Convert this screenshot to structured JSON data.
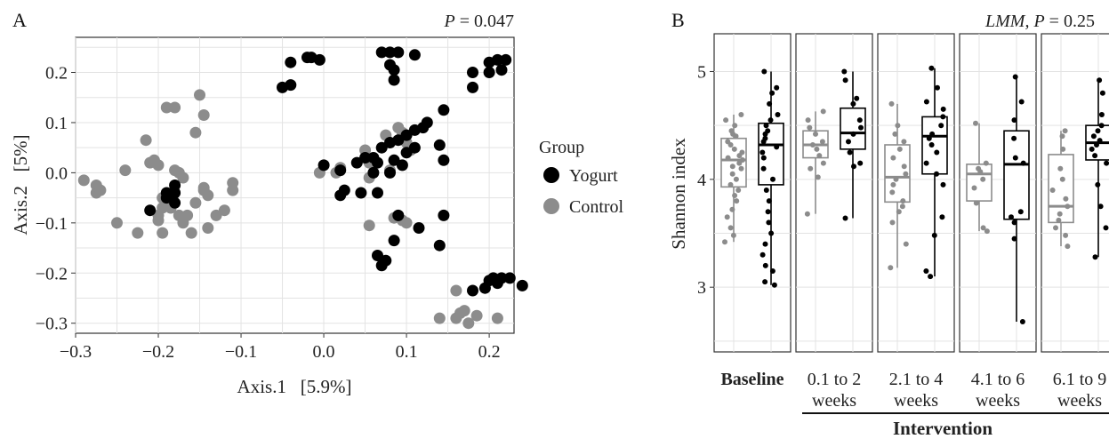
{
  "chart_data": [
    {
      "panel_letter": "A",
      "type": "scatter",
      "p_value_label": "P = 0.047",
      "p_italic": "P",
      "p_rest": " = 0.047",
      "xlabel": "Axis.1   [5.9%]",
      "ylabel": "Axis.2   [5%]",
      "xlim": [
        -0.3,
        0.23
      ],
      "ylim": [
        -0.32,
        0.27
      ],
      "xticks": [
        -0.3,
        -0.2,
        -0.1,
        0.0,
        0.1,
        0.2
      ],
      "xtick_labels": [
        "−0.3",
        "−0.2",
        "−0.1",
        "0.0",
        "0.1",
        "0.2"
      ],
      "yticks": [
        -0.3,
        -0.2,
        -0.1,
        0.0,
        0.1,
        0.2
      ],
      "ytick_labels": [
        "−0.3",
        "−0.2",
        "−0.1",
        "0.0",
        "0.1",
        "0.2"
      ],
      "grid": true,
      "legend": {
        "title": "Group",
        "placement": "right",
        "entries": [
          {
            "name": "Yogurt",
            "color": "#000000"
          },
          {
            "name": "Control",
            "color": "#8c8c8c"
          }
        ]
      },
      "series": [
        {
          "name": "Yogurt",
          "color": "#000000",
          "points": [
            [
              -0.19,
              -0.04
            ],
            [
              -0.18,
              -0.04
            ],
            [
              -0.19,
              -0.05
            ],
            [
              -0.18,
              -0.06
            ],
            [
              -0.21,
              -0.075
            ],
            [
              -0.18,
              -0.025
            ],
            [
              -0.05,
              0.17
            ],
            [
              -0.04,
              0.175
            ],
            [
              -0.04,
              0.22
            ],
            [
              -0.02,
              0.23
            ],
            [
              -0.015,
              0.23
            ],
            [
              -0.005,
              0.225
            ],
            [
              0.07,
              0.24
            ],
            [
              0.08,
              0.24
            ],
            [
              0.09,
              0.24
            ],
            [
              0.11,
              0.235
            ],
            [
              0.08,
              0.215
            ],
            [
              0.085,
              0.205
            ],
            [
              0.085,
              0.185
            ],
            [
              0.18,
              0.2
            ],
            [
              0.2,
              0.22
            ],
            [
              0.21,
              0.225
            ],
            [
              0.22,
              0.225
            ],
            [
              0.215,
              0.205
            ],
            [
              0.2,
              0.2
            ],
            [
              0.18,
              0.17
            ],
            [
              0.0,
              0.015
            ],
            [
              0.02,
              0.005
            ],
            [
              0.04,
              0.02
            ],
            [
              0.05,
              0.03
            ],
            [
              0.06,
              0.03
            ],
            [
              0.065,
              0.02
            ],
            [
              0.07,
              0.05
            ],
            [
              0.08,
              0.06
            ],
            [
              0.09,
              0.065
            ],
            [
              0.1,
              0.075
            ],
            [
              0.11,
              0.085
            ],
            [
              0.12,
              0.09
            ],
            [
              0.125,
              0.1
            ],
            [
              0.145,
              0.125
            ],
            [
              0.065,
              -0.04
            ],
            [
              0.08,
              0.0
            ],
            [
              0.095,
              0.015
            ],
            [
              0.1,
              0.04
            ],
            [
              0.11,
              0.05
            ],
            [
              0.14,
              0.055
            ],
            [
              0.145,
              0.025
            ],
            [
              0.02,
              -0.045
            ],
            [
              0.025,
              -0.035
            ],
            [
              0.045,
              -0.04
            ],
            [
              0.06,
              0.0
            ],
            [
              0.085,
              0.025
            ],
            [
              0.145,
              -0.085
            ],
            [
              0.09,
              -0.085
            ],
            [
              0.115,
              -0.11
            ],
            [
              0.14,
              -0.145
            ],
            [
              0.085,
              -0.135
            ],
            [
              0.065,
              -0.165
            ],
            [
              0.07,
              -0.185
            ],
            [
              0.075,
              -0.175
            ],
            [
              0.18,
              -0.235
            ],
            [
              0.2,
              -0.215
            ],
            [
              0.205,
              -0.21
            ],
            [
              0.21,
              -0.22
            ],
            [
              0.215,
              -0.21
            ],
            [
              0.225,
              -0.21
            ],
            [
              0.24,
              -0.225
            ],
            [
              0.195,
              -0.23
            ]
          ]
        },
        {
          "name": "Control",
          "color": "#8c8c8c",
          "points": [
            [
              -0.29,
              -0.015
            ],
            [
              -0.275,
              -0.025
            ],
            [
              -0.275,
              -0.04
            ],
            [
              -0.27,
              -0.035
            ],
            [
              -0.25,
              -0.1
            ],
            [
              -0.24,
              0.005
            ],
            [
              -0.225,
              -0.12
            ],
            [
              -0.215,
              0.065
            ],
            [
              -0.21,
              0.02
            ],
            [
              -0.205,
              0.025
            ],
            [
              -0.2,
              0.015
            ],
            [
              -0.195,
              -0.05
            ],
            [
              -0.2,
              -0.085
            ],
            [
              -0.2,
              -0.095
            ],
            [
              -0.195,
              -0.12
            ],
            [
              -0.19,
              -0.065
            ],
            [
              -0.185,
              -0.07
            ],
            [
              -0.175,
              -0.085
            ],
            [
              -0.17,
              -0.1
            ],
            [
              -0.165,
              -0.085
            ],
            [
              -0.16,
              -0.12
            ],
            [
              -0.155,
              -0.06
            ],
            [
              -0.14,
              -0.045
            ],
            [
              -0.14,
              -0.11
            ],
            [
              -0.13,
              -0.085
            ],
            [
              -0.12,
              -0.075
            ],
            [
              -0.11,
              -0.02
            ],
            [
              -0.11,
              -0.035
            ],
            [
              -0.19,
              0.13
            ],
            [
              -0.18,
              0.13
            ],
            [
              -0.15,
              0.155
            ],
            [
              -0.145,
              0.115
            ],
            [
              -0.155,
              0.08
            ],
            [
              -0.175,
              0.0
            ],
            [
              -0.18,
              0.005
            ],
            [
              -0.17,
              -0.01
            ],
            [
              -0.145,
              -0.03
            ],
            [
              -0.145,
              -0.035
            ],
            [
              -0.185,
              -0.07
            ],
            [
              -0.195,
              -0.07
            ],
            [
              0.02,
              0.01
            ],
            [
              0.015,
              0.0
            ],
            [
              -0.005,
              0.0
            ],
            [
              0.05,
              0.045
            ],
            [
              0.055,
              0.02
            ],
            [
              0.055,
              -0.01
            ],
            [
              0.08,
              0.005
            ],
            [
              0.09,
              0.09
            ],
            [
              0.095,
              0.08
            ],
            [
              0.075,
              0.075
            ],
            [
              0.1,
              0.06
            ],
            [
              0.105,
              0.045
            ],
            [
              0.095,
              -0.095
            ],
            [
              0.085,
              -0.09
            ],
            [
              0.055,
              -0.105
            ],
            [
              0.1,
              -0.1
            ],
            [
              0.16,
              -0.235
            ],
            [
              0.165,
              -0.28
            ],
            [
              0.17,
              -0.275
            ],
            [
              0.175,
              -0.3
            ],
            [
              0.14,
              -0.29
            ],
            [
              0.16,
              -0.29
            ],
            [
              0.185,
              -0.285
            ],
            [
              0.21,
              -0.29
            ]
          ]
        }
      ]
    },
    {
      "panel_letter": "B",
      "type": "box",
      "p_value_label": "LMM, P = 0.25",
      "p_prefix": "LMM, P",
      "p_rest": " = 0.25",
      "ylabel": "Shannon index",
      "ylim": [
        2.4,
        5.35
      ],
      "yticks": [
        3,
        4,
        5
      ],
      "ytick_labels": [
        "3",
        "4",
        "5"
      ],
      "grid": true,
      "facets": [
        {
          "label_line1": "Baseline",
          "label_line2": "",
          "bold": true,
          "boxes": [
            {
              "group": "Control",
              "q1": 3.93,
              "median": 4.18,
              "q3": 4.38,
              "lo": 3.42,
              "hi": 4.6,
              "points": [
                4.6,
                4.55,
                4.5,
                4.45,
                4.42,
                4.4,
                4.35,
                4.32,
                4.28,
                4.25,
                4.22,
                4.2,
                4.18,
                4.15,
                4.12,
                4.1,
                4.05,
                4.0,
                3.95,
                3.9,
                3.85,
                3.8,
                3.72,
                3.65,
                3.55,
                3.48,
                3.42
              ]
            },
            {
              "group": "Yogurt",
              "q1": 3.95,
              "median": 4.32,
              "q3": 4.52,
              "lo": 3.02,
              "hi": 5.0,
              "points": [
                5.0,
                4.85,
                4.8,
                4.7,
                4.6,
                4.55,
                4.5,
                4.45,
                4.42,
                4.38,
                4.35,
                4.3,
                4.25,
                4.2,
                4.1,
                4.0,
                3.9,
                3.8,
                3.7,
                3.6,
                3.5,
                3.4,
                3.3,
                3.2,
                3.15,
                3.05,
                3.02
              ]
            }
          ]
        },
        {
          "label_line1": "0.1 to 2",
          "label_line2": "weeks",
          "bold": false,
          "boxes": [
            {
              "group": "Control",
              "q1": 4.2,
              "median": 4.32,
              "q3": 4.45,
              "lo": 3.68,
              "hi": 4.63,
              "points": [
                4.63,
                4.55,
                4.48,
                4.42,
                4.35,
                4.32,
                4.28,
                4.22,
                4.15,
                4.1,
                4.02,
                3.68
              ]
            },
            {
              "group": "Yogurt",
              "q1": 4.28,
              "median": 4.43,
              "q3": 4.66,
              "lo": 3.64,
              "hi": 5.0,
              "points": [
                5.0,
                4.92,
                4.75,
                4.7,
                4.55,
                4.48,
                4.42,
                4.35,
                4.25,
                4.15,
                4.12,
                3.64
              ]
            }
          ]
        },
        {
          "label_line1": "2.1 to 4",
          "label_line2": "weeks",
          "bold": false,
          "boxes": [
            {
              "group": "Control",
              "q1": 3.79,
              "median": 4.02,
              "q3": 4.32,
              "lo": 3.18,
              "hi": 4.7,
              "points": [
                4.7,
                4.5,
                4.42,
                4.35,
                4.28,
                4.2,
                4.12,
                4.05,
                4.0,
                3.95,
                3.88,
                3.8,
                3.75,
                3.7,
                3.6,
                3.4,
                3.18
              ]
            },
            {
              "group": "Yogurt",
              "q1": 4.05,
              "median": 4.4,
              "q3": 4.58,
              "lo": 3.1,
              "hi": 5.03,
              "points": [
                5.03,
                4.85,
                4.72,
                4.65,
                4.58,
                4.5,
                4.42,
                4.38,
                4.32,
                4.25,
                4.15,
                4.05,
                3.95,
                3.65,
                3.48,
                3.15,
                3.1
              ]
            }
          ]
        },
        {
          "label_line1": "4.1 to 6",
          "label_line2": "weeks",
          "bold": false,
          "boxes": [
            {
              "group": "Control",
              "q1": 3.8,
              "median": 4.05,
              "q3": 4.14,
              "lo": 3.52,
              "hi": 4.52,
              "points": [
                4.52,
                4.15,
                4.1,
                4.07,
                4.0,
                3.92,
                3.78,
                3.55,
                3.52
              ]
            },
            {
              "group": "Yogurt",
              "q1": 3.63,
              "median": 4.14,
              "q3": 4.45,
              "lo": 2.68,
              "hi": 4.95,
              "points": [
                4.95,
                4.72,
                4.55,
                4.38,
                4.2,
                4.15,
                3.7,
                3.65,
                3.6,
                3.45,
                2.68
              ]
            }
          ]
        },
        {
          "label_line1": "6.1 to 9",
          "label_line2": "weeks",
          "bold": false,
          "boxes": [
            {
              "group": "Control",
              "q1": 3.6,
              "median": 3.75,
              "q3": 4.23,
              "lo": 3.38,
              "hi": 4.45,
              "points": [
                4.45,
                4.4,
                4.28,
                4.1,
                4.0,
                3.9,
                3.82,
                3.75,
                3.68,
                3.62,
                3.55,
                3.48,
                3.38
              ]
            },
            {
              "group": "Yogurt",
              "q1": 4.18,
              "median": 4.34,
              "q3": 4.5,
              "lo": 3.28,
              "hi": 4.92,
              "points": [
                4.92,
                4.8,
                4.6,
                4.5,
                4.45,
                4.4,
                4.36,
                4.32,
                4.28,
                4.22,
                4.15,
                3.95,
                3.75,
                3.55,
                3.28
              ]
            }
          ]
        }
      ],
      "intervention_label": "Intervention"
    }
  ]
}
